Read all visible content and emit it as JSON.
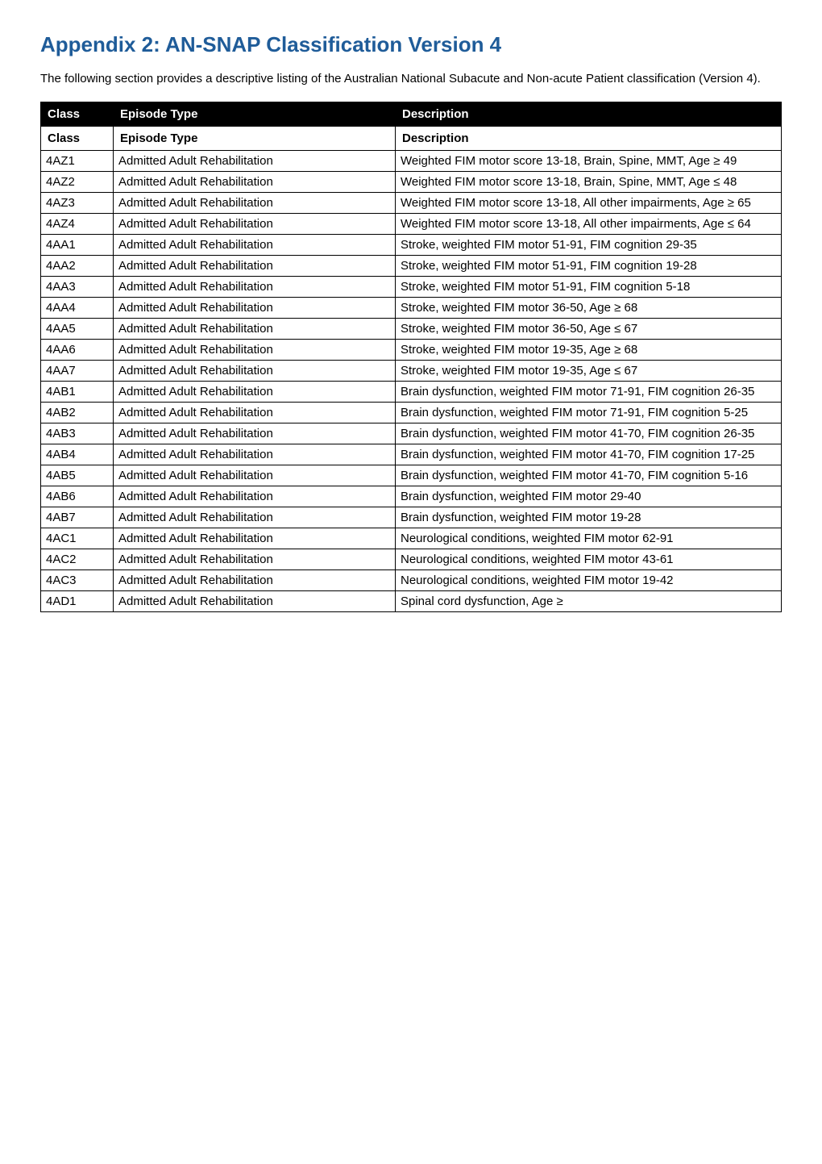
{
  "title": "Appendix 2: AN-SNAP Classification Version 4",
  "intro": "The following section provides a descriptive listing of the Australian National Subacute and Non-acute Patient classification (Version 4).",
  "header1": {
    "class": "Class",
    "type": "Episode Type",
    "desc": "Description"
  },
  "header2": {
    "class": "Class",
    "type": "Episode Type",
    "desc": "Description"
  },
  "rows": [
    {
      "class": "4AZ1",
      "type": "Admitted Adult Rehabilitation",
      "desc": "Weighted FIM motor score 13-18, Brain, Spine, MMT, Age ≥ 49"
    },
    {
      "class": "4AZ2",
      "type": "Admitted Adult Rehabilitation",
      "desc": "Weighted FIM motor score 13-18, Brain, Spine, MMT, Age ≤ 48"
    },
    {
      "class": "4AZ3",
      "type": "Admitted Adult Rehabilitation",
      "desc": "Weighted FIM motor score 13-18, All other impairments, Age ≥ 65"
    },
    {
      "class": "4AZ4",
      "type": "Admitted Adult Rehabilitation",
      "desc": "Weighted FIM motor score 13-18, All other impairments, Age ≤ 64"
    },
    {
      "class": "4AA1",
      "type": "Admitted Adult Rehabilitation",
      "desc": "Stroke, weighted FIM motor 51-91, FIM cognition 29-35"
    },
    {
      "class": "4AA2",
      "type": "Admitted Adult Rehabilitation",
      "desc": "Stroke, weighted FIM motor 51-91, FIM cognition 19-28"
    },
    {
      "class": "4AA3",
      "type": "Admitted Adult Rehabilitation",
      "desc": "Stroke, weighted FIM motor 51-91, FIM cognition 5-18"
    },
    {
      "class": "4AA4",
      "type": "Admitted Adult Rehabilitation",
      "desc": "Stroke, weighted FIM motor 36-50, Age ≥ 68"
    },
    {
      "class": "4AA5",
      "type": "Admitted Adult Rehabilitation",
      "desc": "Stroke, weighted FIM motor 36-50, Age ≤ 67"
    },
    {
      "class": "4AA6",
      "type": "Admitted Adult Rehabilitation",
      "desc": "Stroke, weighted FIM motor 19-35, Age ≥ 68"
    },
    {
      "class": "4AA7",
      "type": "Admitted Adult Rehabilitation",
      "desc": "Stroke, weighted FIM motor 19-35, Age ≤ 67"
    },
    {
      "class": "4AB1",
      "type": "Admitted Adult Rehabilitation",
      "desc": "Brain dysfunction, weighted FIM motor 71-91, FIM cognition 26-35"
    },
    {
      "class": "4AB2",
      "type": "Admitted Adult Rehabilitation",
      "desc": "Brain dysfunction, weighted FIM motor 71-91, FIM cognition 5-25"
    },
    {
      "class": "4AB3",
      "type": "Admitted Adult Rehabilitation",
      "desc": "Brain dysfunction, weighted FIM motor 41-70, FIM cognition 26-35"
    },
    {
      "class": "4AB4",
      "type": "Admitted Adult Rehabilitation",
      "desc": "Brain dysfunction, weighted FIM motor 41-70, FIM cognition 17-25"
    },
    {
      "class": "4AB5",
      "type": "Admitted Adult Rehabilitation",
      "desc": "Brain dysfunction, weighted FIM motor 41-70, FIM cognition 5-16"
    },
    {
      "class": "4AB6",
      "type": "Admitted Adult Rehabilitation",
      "desc": "Brain dysfunction, weighted FIM motor 29-40"
    },
    {
      "class": "4AB7",
      "type": "Admitted Adult Rehabilitation",
      "desc": "Brain dysfunction, weighted FIM motor 19-28"
    },
    {
      "class": "4AC1",
      "type": "Admitted Adult Rehabilitation",
      "desc": "Neurological conditions, weighted FIM motor 62-91"
    },
    {
      "class": "4AC2",
      "type": "Admitted Adult Rehabilitation",
      "desc": "Neurological conditions, weighted FIM motor 43-61"
    },
    {
      "class": "4AC3",
      "type": "Admitted Adult Rehabilitation",
      "desc": "Neurological conditions, weighted FIM motor 19-42"
    },
    {
      "class": "4AD1",
      "type": "Admitted Adult Rehabilitation",
      "desc": "Spinal cord dysfunction, Age ≥"
    }
  ]
}
